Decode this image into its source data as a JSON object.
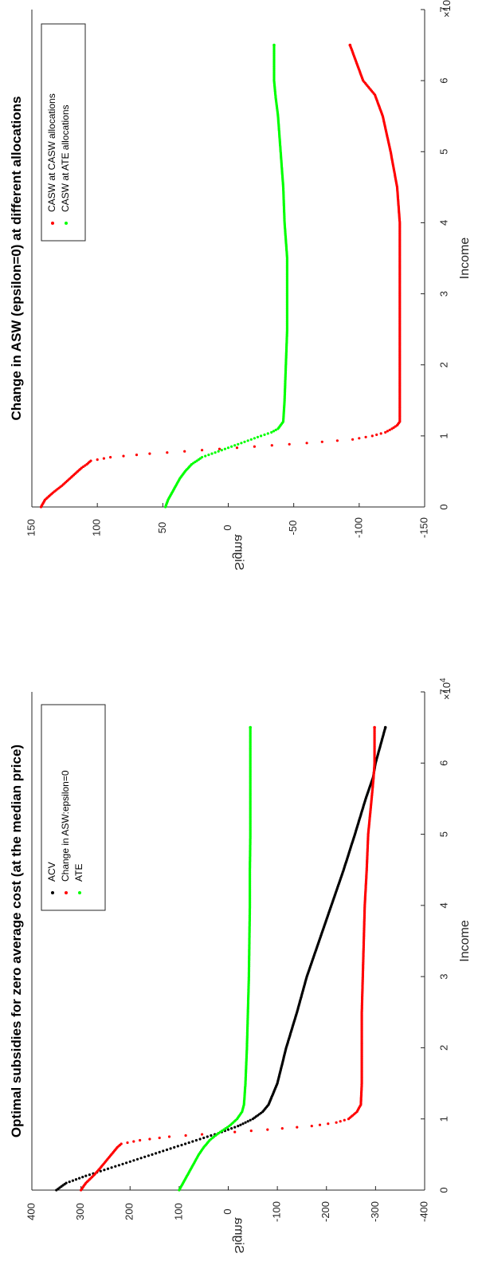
{
  "chart_data": [
    {
      "type": "scatter",
      "title": "Change in ASW (epsilon=0) at different allocations",
      "xlabel": "Income",
      "ylabel": "Sigma",
      "x_multiplier": "×10",
      "x_exponent": "4",
      "xlim": [
        0,
        70000
      ],
      "ylim": [
        -150,
        150
      ],
      "xticks": [
        0,
        10000,
        20000,
        30000,
        40000,
        50000,
        60000,
        70000
      ],
      "xtick_labels": [
        "0",
        "1",
        "2",
        "3",
        "4",
        "5",
        "6",
        "7"
      ],
      "yticks": [
        -150,
        -100,
        -50,
        0,
        50,
        100,
        150
      ],
      "ytick_labels": [
        "-150",
        "-100",
        "-50",
        "0",
        "50",
        "100",
        "150"
      ],
      "legend_position": "top-left",
      "rotated": "90deg-counterclockwise",
      "series": [
        {
          "name": "CASW at CASW allocations",
          "color": "#ff0000",
          "points": [
            [
              0,
              143
            ],
            [
              1000,
              140
            ],
            [
              2000,
              134
            ],
            [
              3000,
              127
            ],
            [
              4000,
              121
            ],
            [
              5000,
              115
            ],
            [
              5500,
              112
            ],
            [
              6000,
              108
            ],
            [
              6500,
              105
            ],
            [
              7000,
              90
            ],
            [
              7500,
              60
            ],
            [
              8000,
              20
            ],
            [
              8500,
              -20
            ],
            [
              9000,
              -60
            ],
            [
              9500,
              -95
            ],
            [
              10000,
              -110
            ],
            [
              10500,
              -120
            ],
            [
              11000,
              -125
            ],
            [
              11500,
              -129
            ],
            [
              12000,
              -131
            ],
            [
              15000,
              -131
            ],
            [
              20000,
              -131
            ],
            [
              25000,
              -131
            ],
            [
              30000,
              -131
            ],
            [
              35000,
              -131
            ],
            [
              40000,
              -131
            ],
            [
              45000,
              -129
            ],
            [
              50000,
              -124
            ],
            [
              55000,
              -118
            ],
            [
              58000,
              -112
            ],
            [
              60000,
              -103
            ],
            [
              65000,
              -93
            ]
          ]
        },
        {
          "name": "CASW at ATE allocations",
          "color": "#00ff00",
          "points": [
            [
              0,
              48
            ],
            [
              1000,
              46
            ],
            [
              2000,
              43
            ],
            [
              3000,
              40
            ],
            [
              4000,
              37
            ],
            [
              5000,
              33
            ],
            [
              6000,
              28
            ],
            [
              7000,
              20
            ],
            [
              8000,
              5
            ],
            [
              9000,
              -10
            ],
            [
              10000,
              -25
            ],
            [
              10500,
              -33
            ],
            [
              11000,
              -38
            ],
            [
              11500,
              -40
            ],
            [
              12000,
              -42
            ],
            [
              15000,
              -43
            ],
            [
              20000,
              -44
            ],
            [
              25000,
              -45
            ],
            [
              30000,
              -45
            ],
            [
              35000,
              -45
            ],
            [
              40000,
              -43
            ],
            [
              45000,
              -42
            ],
            [
              50000,
              -40
            ],
            [
              55000,
              -38
            ],
            [
              58000,
              -36
            ],
            [
              60000,
              -35
            ],
            [
              65000,
              -35
            ]
          ]
        }
      ]
    },
    {
      "type": "scatter",
      "title": "Optimal subsidies for zero average cost (at the median price)",
      "xlabel": "Income",
      "ylabel": "Sigma",
      "x_multiplier": "×10",
      "x_exponent": "4",
      "xlim": [
        0,
        70000
      ],
      "ylim": [
        -400,
        400
      ],
      "xticks": [
        0,
        10000,
        20000,
        30000,
        40000,
        50000,
        60000,
        70000
      ],
      "xtick_labels": [
        "0",
        "1",
        "2",
        "3",
        "4",
        "5",
        "6",
        "7"
      ],
      "yticks": [
        -400,
        -300,
        -200,
        -100,
        0,
        100,
        200,
        300,
        400
      ],
      "ytick_labels": [
        "-400",
        "-300",
        "-200",
        "-100",
        "0",
        "100",
        "200",
        "300",
        "400"
      ],
      "legend_position": "top-left",
      "rotated": "90deg-counterclockwise",
      "series": [
        {
          "name": "ACV",
          "color": "#000000",
          "points": [
            [
              0,
              350
            ],
            [
              1000,
              330
            ],
            [
              2000,
              290
            ],
            [
              3000,
              245
            ],
            [
              4000,
              200
            ],
            [
              5000,
              155
            ],
            [
              6000,
              110
            ],
            [
              7000,
              65
            ],
            [
              8000,
              20
            ],
            [
              9000,
              -20
            ],
            [
              10000,
              -50
            ],
            [
              11000,
              -70
            ],
            [
              12000,
              -82
            ],
            [
              15000,
              -100
            ],
            [
              20000,
              -118
            ],
            [
              25000,
              -140
            ],
            [
              30000,
              -160
            ],
            [
              35000,
              -185
            ],
            [
              40000,
              -210
            ],
            [
              45000,
              -235
            ],
            [
              50000,
              -258
            ],
            [
              55000,
              -280
            ],
            [
              58000,
              -295
            ],
            [
              60000,
              -300
            ],
            [
              65000,
              -320
            ]
          ]
        },
        {
          "name": "Change in ASW:epsilon=0",
          "color": "#ff0000",
          "points": [
            [
              0,
              300
            ],
            [
              1000,
              290
            ],
            [
              2000,
              275
            ],
            [
              3000,
              262
            ],
            [
              4000,
              250
            ],
            [
              5000,
              238
            ],
            [
              5500,
              232
            ],
            [
              6000,
              226
            ],
            [
              6500,
              218
            ],
            [
              7000,
              180
            ],
            [
              7500,
              120
            ],
            [
              8000,
              20
            ],
            [
              8500,
              -80
            ],
            [
              9000,
              -170
            ],
            [
              9500,
              -220
            ],
            [
              10000,
              -245
            ],
            [
              11000,
              -262
            ],
            [
              12000,
              -270
            ],
            [
              15000,
              -272
            ],
            [
              20000,
              -272
            ],
            [
              25000,
              -272
            ],
            [
              30000,
              -274
            ],
            [
              35000,
              -276
            ],
            [
              40000,
              -278
            ],
            [
              45000,
              -282
            ],
            [
              50000,
              -285
            ],
            [
              55000,
              -292
            ],
            [
              58000,
              -296
            ],
            [
              60000,
              -298
            ],
            [
              65000,
              -298
            ]
          ]
        },
        {
          "name": "ATE",
          "color": "#00ff00",
          "points": [
            [
              0,
              100
            ],
            [
              1000,
              92
            ],
            [
              2000,
              84
            ],
            [
              3000,
              76
            ],
            [
              4000,
              68
            ],
            [
              5000,
              60
            ],
            [
              6000,
              50
            ],
            [
              7000,
              38
            ],
            [
              8000,
              20
            ],
            [
              9000,
              -2
            ],
            [
              10000,
              -18
            ],
            [
              11000,
              -28
            ],
            [
              12000,
              -32
            ],
            [
              15000,
              -35
            ],
            [
              20000,
              -38
            ],
            [
              25000,
              -40
            ],
            [
              30000,
              -42
            ],
            [
              35000,
              -43
            ],
            [
              40000,
              -44
            ],
            [
              45000,
              -44
            ],
            [
              50000,
              -45
            ],
            [
              55000,
              -45
            ],
            [
              60000,
              -45
            ],
            [
              65000,
              -45
            ]
          ]
        }
      ]
    }
  ]
}
